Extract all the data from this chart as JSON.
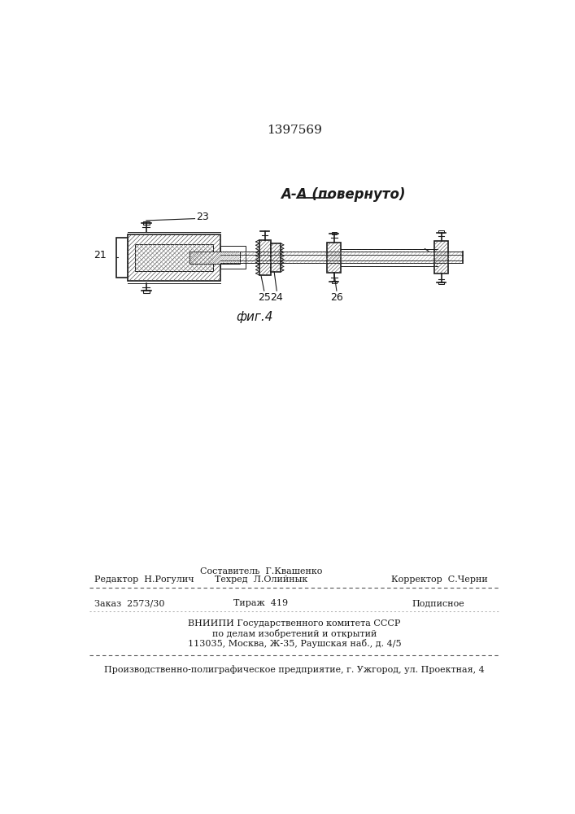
{
  "patent_number": "1397569",
  "section_label": "А-А (повернуто)",
  "fig_label": "фиг.4",
  "bg_color": "#ffffff",
  "line_color": "#1a1a1a",
  "footer_line1_left": "Редактор  Н.Рогулич",
  "footer_line1_center1": "Составитель  Г.Квашенко",
  "footer_line1_center2": "Техред  Л.Олийнык",
  "footer_line1_right": "Корректор  С.Черни",
  "footer_line2_left": "Заказ  2573/30",
  "footer_line2_center": "Тираж  419",
  "footer_line2_right": "Подписное",
  "footer_line3a": "ВНИИПИ Государственного комитета СССР",
  "footer_line3b": "по делам изобретений и открытий",
  "footer_line3c": "113035, Москва, Ж-35, Раушская наб., д. 4/5",
  "footer_line4": "Производственно-полиграфическое предприятие, г. Ужгород, ул. Проектная, 4"
}
